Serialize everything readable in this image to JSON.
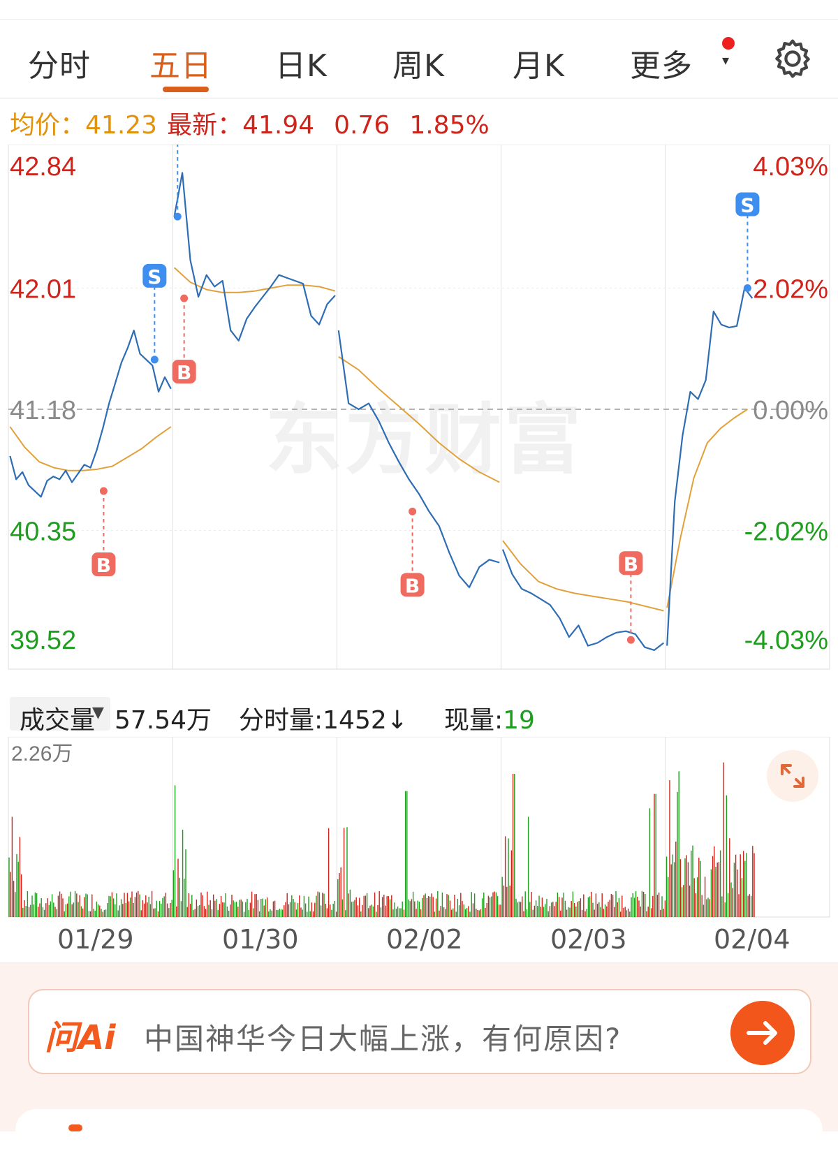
{
  "tabs": [
    {
      "label": "分时"
    },
    {
      "label": "五日"
    },
    {
      "label": "日K"
    },
    {
      "label": "周K"
    },
    {
      "label": "月K"
    },
    {
      "label": "更多"
    }
  ],
  "active_tab": "五日",
  "quote": {
    "avg_label": "均价：",
    "avg_value": "41.23",
    "latest_label": "最新：",
    "latest_value": "41.94",
    "change": "0.76",
    "change_pct": "1.85%"
  },
  "watermark": "东方财富",
  "colors": {
    "up": "#d0231a",
    "down": "#1e9e1e",
    "price_line": "#2e6db4",
    "avg_line": "#e2a03b",
    "accent": "#d9601c",
    "buy": "#ef6b5f",
    "sell": "#3e8ef0"
  },
  "chart_data": {
    "type": "line",
    "y_left_ticks": [
      "42.84",
      "42.01",
      "41.18",
      "40.35",
      "39.52"
    ],
    "y_right_ticks": [
      "4.03%",
      "2.02%",
      "0.00%",
      "-2.02%",
      "-4.03%"
    ],
    "ylim": [
      39.52,
      42.84
    ],
    "prev_close": 41.18,
    "days": [
      "01/29",
      "01/30",
      "02/02",
      "02/03",
      "02/04"
    ],
    "series": [
      {
        "values_by_day": [
          [
            40.86,
            40.7,
            40.75,
            40.66,
            40.62,
            40.58,
            40.69,
            40.72,
            40.7,
            40.76,
            40.68,
            40.74,
            40.8,
            40.78,
            40.9,
            41.05,
            41.22,
            41.36,
            41.5,
            41.6,
            41.72,
            41.56,
            41.52,
            41.48,
            41.3,
            41.4,
            41.32
          ],
          [
            42.5,
            42.8,
            42.2,
            41.95,
            42.1,
            42.02,
            42.06,
            41.72,
            41.65,
            41.8,
            41.88,
            41.95,
            42.02,
            42.1,
            42.08,
            42.06,
            42.04,
            41.82,
            41.76,
            41.9,
            41.96
          ],
          [
            41.72,
            41.22,
            41.18,
            41.22,
            41.1,
            40.95,
            40.82,
            40.7,
            40.6,
            40.48,
            40.38,
            40.2,
            40.04,
            39.96,
            40.1,
            40.15,
            40.13
          ],
          [
            40.22,
            40.05,
            39.95,
            39.92,
            39.88,
            39.84,
            39.75,
            39.62,
            39.7,
            39.56,
            39.58,
            39.62,
            39.65,
            39.66,
            39.64,
            39.55,
            39.53,
            39.58
          ],
          [
            39.56,
            40.55,
            41.0,
            41.3,
            41.25,
            41.38,
            41.85,
            41.76,
            41.74,
            41.75,
            42.01,
            41.94
          ]
        ]
      },
      {
        "values_by_day": [
          [
            41.06,
            40.92,
            40.82,
            40.78,
            40.76,
            40.76,
            40.77,
            40.79,
            40.85,
            40.91,
            40.99,
            41.06
          ],
          [
            42.15,
            42.05,
            42.0,
            41.98,
            41.98,
            41.99,
            42.01,
            42.03,
            42.03,
            42.02,
            41.99
          ],
          [
            41.54,
            41.45,
            41.32,
            41.2,
            41.08,
            40.95,
            40.84,
            40.75,
            40.68
          ],
          [
            40.28,
            40.12,
            40.0,
            39.95,
            39.92,
            39.9,
            39.88,
            39.86,
            39.83,
            39.8
          ],
          [
            39.82,
            40.3,
            40.71,
            40.95,
            41.05,
            41.12,
            41.18
          ]
        ]
      }
    ],
    "trades": [
      {
        "type": "B",
        "day": 0,
        "price": 40.62
      },
      {
        "type": "S",
        "day": 0,
        "price": 41.52
      },
      {
        "type": "S",
        "day": 1,
        "price": 42.5
      },
      {
        "type": "B",
        "day": 1,
        "price": 41.94
      },
      {
        "type": "B",
        "day": 2,
        "price": 40.48
      },
      {
        "type": "B",
        "day": 3,
        "price": 39.6
      },
      {
        "type": "S",
        "day": 4,
        "price": 42.01
      }
    ],
    "volume_max_label": "2.26万"
  },
  "volume_header": {
    "selector": "成交量",
    "total": "57.54万",
    "period_vol": "分时量:1452↓",
    "now_label": "现量:",
    "now_value": "19"
  },
  "ask": {
    "logo": "问Ai",
    "question": "中国神华今日大幅上涨，有何原因?"
  }
}
